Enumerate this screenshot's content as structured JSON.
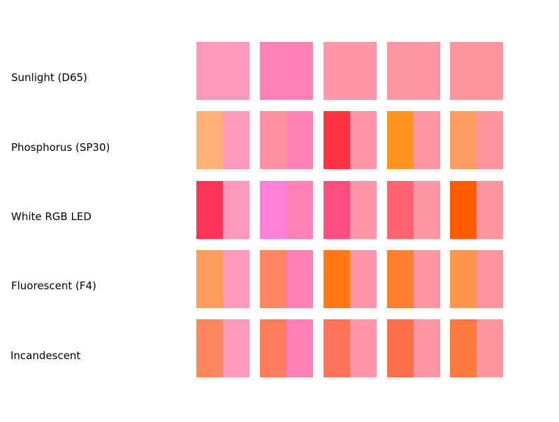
{
  "chart_data": {
    "type": "heatmap",
    "rows": [
      {
        "label": "Sunlight (D65)",
        "cells": [
          {
            "left": "#ff99bb",
            "right": "#ff99bb"
          },
          {
            "left": "#ff82b6",
            "right": "#ff82b6"
          },
          {
            "left": "#ff96aa",
            "right": "#ff96aa"
          },
          {
            "left": "#ff96a3",
            "right": "#ff96a3"
          },
          {
            "left": "#ff969d",
            "right": "#ff969d"
          }
        ]
      },
      {
        "label": "Phosphorus (SP30)",
        "cells": [
          {
            "left": "#ffb178",
            "right": "#ff99bb"
          },
          {
            "left": "#ff919f",
            "right": "#ff82b6"
          },
          {
            "left": "#ff3344",
            "right": "#ff96aa"
          },
          {
            "left": "#ff951e",
            "right": "#ff96a3"
          },
          {
            "left": "#ff9c64",
            "right": "#ff969d"
          }
        ]
      },
      {
        "label": "White RGB LED",
        "cells": [
          {
            "left": "#ff3459",
            "right": "#ff99bb"
          },
          {
            "left": "#ff80d6",
            "right": "#ff82b6"
          },
          {
            "left": "#ff4e7f",
            "right": "#ff96aa"
          },
          {
            "left": "#ff6570",
            "right": "#ff96a3"
          },
          {
            "left": "#ff5b00",
            "right": "#ff969d"
          }
        ]
      },
      {
        "label": "Fluorescent (F4)",
        "cells": [
          {
            "left": "#ff9d5e",
            "right": "#ff99bb"
          },
          {
            "left": "#ff8660",
            "right": "#ff82b6"
          },
          {
            "left": "#ff7716",
            "right": "#ff96aa"
          },
          {
            "left": "#ff7d31",
            "right": "#ff96a3"
          },
          {
            "left": "#ff944c",
            "right": "#ff969d"
          }
        ]
      },
      {
        "label": "Incandescent",
        "cells": [
          {
            "left": "#ff865d",
            "right": "#ff99bb"
          },
          {
            "left": "#ff7d5d",
            "right": "#ff82b6"
          },
          {
            "left": "#ff7458",
            "right": "#ff96aa"
          },
          {
            "left": "#ff6f4c",
            "right": "#ff96a3"
          },
          {
            "left": "#ff7a3e",
            "right": "#ff969d"
          }
        ]
      }
    ]
  }
}
